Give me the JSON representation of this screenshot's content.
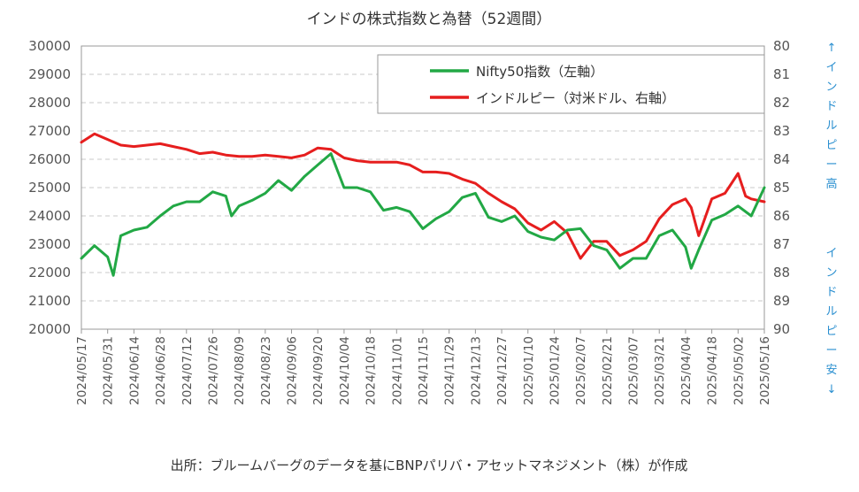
{
  "chart_data": {
    "type": "line",
    "title": "インドの株式指数と為替（52週間）",
    "source_note": "出所：ブルームバーグのデータを基にBNPパリバ・アセットマネジメント（株）が作成",
    "x_ticks": [
      "2024/05/17",
      "2024/05/31",
      "2024/06/14",
      "2024/06/28",
      "2024/07/12",
      "2024/07/26",
      "2024/08/09",
      "2024/08/23",
      "2024/09/06",
      "2024/09/20",
      "2024/10/04",
      "2024/10/18",
      "2024/11/01",
      "2024/11/15",
      "2024/11/29",
      "2024/12/13",
      "2024/12/27",
      "2025/01/10",
      "2025/01/24",
      "2025/02/07",
      "2025/02/21",
      "2025/03/07",
      "2025/03/21",
      "2025/04/04",
      "2025/04/18",
      "2025/05/02",
      "2025/05/16"
    ],
    "y_left": {
      "min": 20000,
      "max": 30000,
      "step": 1000,
      "ticks": [
        "20000",
        "21000",
        "22000",
        "23000",
        "24000",
        "25000",
        "26000",
        "27000",
        "28000",
        "29000",
        "30000"
      ]
    },
    "y_right": {
      "min": 80,
      "max": 90,
      "inverted": true,
      "ticks": [
        "80",
        "81",
        "82",
        "83",
        "84",
        "85",
        "86",
        "87",
        "88",
        "89",
        "90"
      ]
    },
    "right_axis_top_label": "↑インドルピー高",
    "right_axis_bottom_label": "インドルピー安↓",
    "legend_position": "top-right",
    "grid": true,
    "series": [
      {
        "name": "Nifty50指数（左軸）",
        "color": "#22a845",
        "axis": "left",
        "x": [
          "2024/05/17",
          "2024/05/24",
          "2024/05/31",
          "2024/06/03",
          "2024/06/07",
          "2024/06/14",
          "2024/06/21",
          "2024/06/28",
          "2024/07/05",
          "2024/07/12",
          "2024/07/19",
          "2024/07/26",
          "2024/08/02",
          "2024/08/05",
          "2024/08/09",
          "2024/08/16",
          "2024/08/23",
          "2024/08/30",
          "2024/09/06",
          "2024/09/13",
          "2024/09/20",
          "2024/09/27",
          "2024/10/04",
          "2024/10/11",
          "2024/10/18",
          "2024/10/25",
          "2024/11/01",
          "2024/11/08",
          "2024/11/15",
          "2024/11/22",
          "2024/11/29",
          "2024/12/06",
          "2024/12/13",
          "2024/12/20",
          "2024/12/27",
          "2025/01/03",
          "2025/01/10",
          "2025/01/17",
          "2025/01/24",
          "2025/01/31",
          "2025/02/07",
          "2025/02/14",
          "2025/02/21",
          "2025/02/28",
          "2025/03/07",
          "2025/03/14",
          "2025/03/21",
          "2025/03/28",
          "2025/04/04",
          "2025/04/07",
          "2025/04/11",
          "2025/04/18",
          "2025/04/25",
          "2025/05/02",
          "2025/05/09",
          "2025/05/16"
        ],
        "values": [
          22500,
          22950,
          22550,
          21900,
          23300,
          23500,
          23600,
          24000,
          24350,
          24500,
          24500,
          24850,
          24700,
          24000,
          24350,
          24550,
          24800,
          25250,
          24900,
          25400,
          25800,
          26200,
          25000,
          25000,
          24850,
          24200,
          24300,
          24150,
          23550,
          23900,
          24150,
          24650,
          24800,
          23950,
          23800,
          24000,
          23450,
          23250,
          23150,
          23500,
          23550,
          22950,
          22800,
          22150,
          22500,
          22500,
          23300,
          23500,
          22900,
          22150,
          22800,
          23850,
          24050,
          24350,
          24000,
          25000
        ]
      },
      {
        "name": "インドルピー（対米ドル、右軸）",
        "color": "#e61e1e",
        "axis": "right",
        "x": [
          "2024/05/17",
          "2024/05/24",
          "2024/05/31",
          "2024/06/07",
          "2024/06/14",
          "2024/06/21",
          "2024/06/28",
          "2024/07/05",
          "2024/07/12",
          "2024/07/19",
          "2024/07/26",
          "2024/08/02",
          "2024/08/09",
          "2024/08/16",
          "2024/08/23",
          "2024/08/30",
          "2024/09/06",
          "2024/09/13",
          "2024/09/20",
          "2024/09/27",
          "2024/10/04",
          "2024/10/11",
          "2024/10/18",
          "2024/10/25",
          "2024/11/01",
          "2024/11/08",
          "2024/11/15",
          "2024/11/22",
          "2024/11/29",
          "2024/12/06",
          "2024/12/13",
          "2024/12/20",
          "2024/12/27",
          "2025/01/03",
          "2025/01/10",
          "2025/01/17",
          "2025/01/24",
          "2025/01/31",
          "2025/02/07",
          "2025/02/14",
          "2025/02/21",
          "2025/02/28",
          "2025/03/07",
          "2025/03/14",
          "2025/03/21",
          "2025/03/28",
          "2025/04/04",
          "2025/04/07",
          "2025/04/11",
          "2025/04/18",
          "2025/04/25",
          "2025/05/02",
          "2025/05/06",
          "2025/05/09",
          "2025/05/16"
        ],
        "values": [
          83.4,
          83.1,
          83.3,
          83.5,
          83.55,
          83.5,
          83.45,
          83.55,
          83.65,
          83.8,
          83.75,
          83.85,
          83.9,
          83.9,
          83.85,
          83.9,
          83.95,
          83.85,
          83.6,
          83.65,
          83.95,
          84.05,
          84.1,
          84.1,
          84.1,
          84.2,
          84.45,
          84.45,
          84.5,
          84.7,
          84.85,
          85.2,
          85.5,
          85.75,
          86.25,
          86.5,
          86.2,
          86.6,
          87.5,
          86.9,
          86.9,
          87.4,
          87.2,
          86.9,
          86.1,
          85.6,
          85.4,
          85.7,
          86.7,
          85.4,
          85.2,
          84.5,
          85.3,
          85.4,
          85.5
        ]
      }
    ]
  }
}
